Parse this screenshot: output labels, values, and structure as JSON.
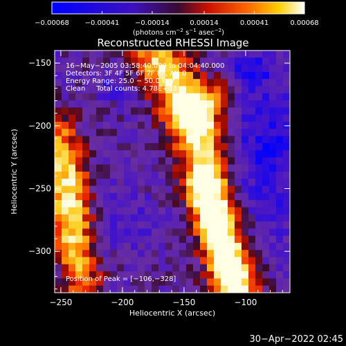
{
  "colorbar": {
    "tick_labels": [
      "−0.00068",
      "−0.00041",
      "−0.00014",
      "0.00014",
      "0.00041",
      "0.00068"
    ],
    "tick_values": [
      -0.00068,
      -0.00041,
      -0.00014,
      0.00014,
      0.00041,
      0.00068
    ],
    "range": [
      -0.00068,
      0.00068
    ],
    "units_prefix": "(photons cm",
    "units_exp1": "−2",
    "units_mid": " s",
    "units_exp2": "−1",
    "units_mid2": " asec",
    "units_exp3": "−2",
    "units_suffix": ")"
  },
  "chart_data": {
    "type": "heatmap",
    "title": "Reconstructed RHESSI Image",
    "xlabel": "Heliocentric X (arcsec)",
    "ylabel": "Heliocentric Y (arcsec)",
    "xlim": [
      -255,
      -64
    ],
    "ylim": [
      -333,
      -140
    ],
    "x_ticks": [
      -250,
      -200,
      -150,
      -100
    ],
    "x_tick_labels": [
      "−250",
      "−200",
      "−150",
      "−100"
    ],
    "y_ticks": [
      -150,
      -200,
      -250,
      -300
    ],
    "y_tick_labels": [
      "−150",
      "−200",
      "−250",
      "−300"
    ],
    "colormap": "blue-purple-red-orange-yellow-white",
    "value_range": [
      -0.00068,
      0.00068
    ],
    "annotations": [
      "16−May−2005 03:58:40.000 to 04:04:40.000",
      "Detectors: 3F 4F 5F 6F 7F 8F, Att 0",
      "Energy Range: 25.0 − 50.0 keV",
      "Clean     Total counts: 4.78E+03"
    ],
    "peak_label": "Position of Peak = [−106,−328]",
    "peak_position": [
      -106,
      -328
    ],
    "total_counts": "4.78E+03"
  },
  "footer": {
    "timestamp": "30−Apr−2022 02:45"
  }
}
